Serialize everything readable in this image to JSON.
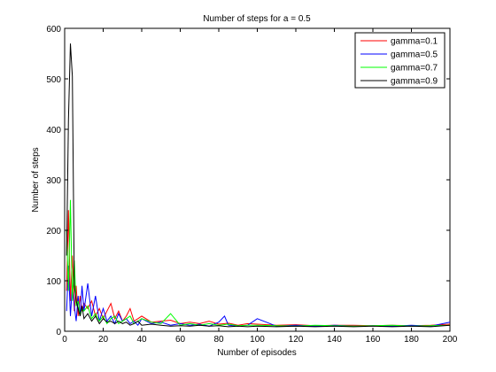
{
  "chart_data": {
    "type": "line",
    "title": "Number of steps for a = 0.5",
    "xlabel": "Number of episodes",
    "ylabel": "Number of steps",
    "xlim": [
      0,
      200
    ],
    "ylim": [
      0,
      600
    ],
    "xticks": [
      0,
      20,
      40,
      60,
      80,
      100,
      120,
      140,
      160,
      180,
      200
    ],
    "yticks": [
      0,
      100,
      200,
      300,
      400,
      500,
      600
    ],
    "grid": false,
    "legend_position": "top-right",
    "series": [
      {
        "name": "gamma=0.1",
        "color": "#ff0000",
        "x": [
          1,
          2,
          3,
          4,
          5,
          6,
          7,
          8,
          9,
          10,
          12,
          14,
          16,
          18,
          20,
          22,
          24,
          26,
          28,
          30,
          32,
          34,
          36,
          38,
          40,
          45,
          50,
          55,
          60,
          65,
          70,
          75,
          80,
          85,
          90,
          95,
          100,
          110,
          120,
          130,
          140,
          150,
          160,
          170,
          180,
          190,
          200
        ],
        "values": [
          80,
          240,
          60,
          150,
          40,
          90,
          30,
          70,
          40,
          55,
          45,
          60,
          30,
          45,
          25,
          40,
          55,
          25,
          40,
          20,
          30,
          45,
          20,
          25,
          30,
          18,
          20,
          22,
          15,
          18,
          15,
          20,
          14,
          16,
          12,
          15,
          14,
          12,
          13,
          11,
          12,
          12,
          11,
          12,
          11,
          12,
          14
        ]
      },
      {
        "name": "gamma=0.5",
        "color": "#0000ff",
        "x": [
          1,
          2,
          3,
          4,
          5,
          6,
          7,
          8,
          9,
          10,
          12,
          14,
          16,
          18,
          20,
          22,
          24,
          26,
          28,
          30,
          32,
          34,
          36,
          38,
          40,
          45,
          50,
          55,
          60,
          65,
          70,
          75,
          80,
          83,
          85,
          90,
          95,
          100,
          110,
          120,
          130,
          140,
          150,
          160,
          170,
          180,
          190,
          200
        ],
        "values": [
          40,
          130,
          30,
          90,
          50,
          20,
          70,
          30,
          90,
          40,
          95,
          30,
          70,
          20,
          45,
          20,
          30,
          15,
          35,
          20,
          25,
          15,
          20,
          12,
          25,
          15,
          18,
          12,
          15,
          12,
          14,
          10,
          18,
          30,
          12,
          10,
          12,
          25,
          10,
          12,
          10,
          12,
          10,
          11,
          10,
          12,
          10,
          18
        ]
      },
      {
        "name": "gamma=0.7",
        "color": "#00ff00",
        "x": [
          1,
          2,
          3,
          4,
          5,
          6,
          7,
          8,
          9,
          10,
          12,
          14,
          16,
          18,
          20,
          22,
          24,
          26,
          28,
          30,
          32,
          34,
          36,
          38,
          40,
          45,
          50,
          55,
          60,
          65,
          70,
          75,
          80,
          85,
          90,
          95,
          100,
          110,
          120,
          130,
          140,
          150,
          160,
          170,
          180,
          190,
          200
        ],
        "values": [
          200,
          80,
          260,
          60,
          140,
          50,
          60,
          30,
          45,
          40,
          50,
          25,
          35,
          20,
          30,
          15,
          25,
          30,
          15,
          20,
          25,
          30,
          15,
          20,
          25,
          18,
          15,
          35,
          12,
          15,
          12,
          15,
          12,
          14,
          11,
          12,
          12,
          11,
          10,
          12,
          11,
          10,
          11,
          12,
          10,
          11,
          12
        ]
      },
      {
        "name": "gamma=0.9",
        "color": "#000000",
        "x": [
          1,
          2,
          3,
          4,
          5,
          6,
          7,
          8,
          9,
          10,
          12,
          14,
          16,
          18,
          20,
          22,
          24,
          26,
          28,
          30,
          32,
          34,
          36,
          38,
          40,
          45,
          50,
          55,
          60,
          65,
          70,
          75,
          80,
          85,
          90,
          95,
          100,
          110,
          120,
          130,
          140,
          150,
          160,
          170,
          180,
          190,
          200
        ],
        "values": [
          150,
          420,
          570,
          505,
          90,
          60,
          45,
          30,
          50,
          25,
          35,
          20,
          30,
          15,
          25,
          18,
          20,
          15,
          20,
          15,
          18,
          12,
          15,
          20,
          12,
          14,
          12,
          10,
          11,
          10,
          12,
          10,
          11,
          9,
          10,
          9,
          10,
          9,
          10,
          9,
          10,
          9,
          10,
          9,
          10,
          9,
          12
        ]
      }
    ]
  }
}
